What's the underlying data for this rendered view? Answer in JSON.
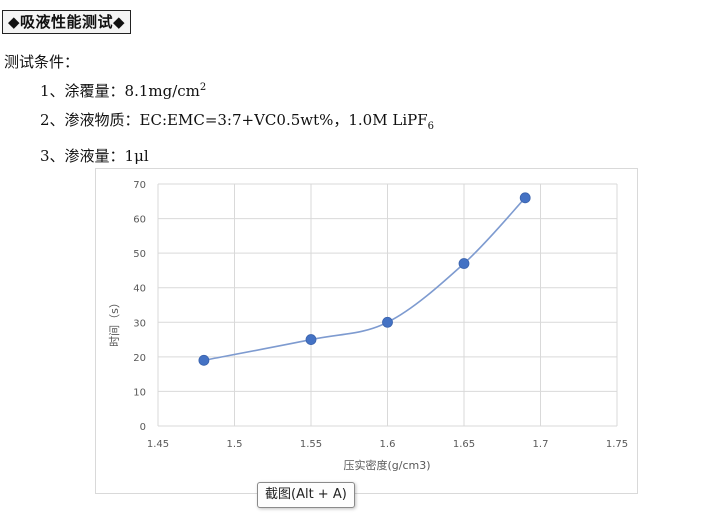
{
  "heading": "◆吸液性能测试◆",
  "conditions": {
    "title": "测试条件：",
    "item1": {
      "prefix": "1、涂覆量：",
      "value": "8.1mg/cm",
      "sup": "2"
    },
    "item2": {
      "prefix": "2、渗液物质：",
      "value": "EC:EMC=3:7+VC0.5wt%，1.0M LiPF",
      "sub": "6"
    },
    "item3": {
      "prefix": "3、渗液量：",
      "value": "1μl"
    }
  },
  "tooltip": "截图(Alt + A)",
  "colors": {
    "series": "#4472C4",
    "line": "#7E9BD0",
    "grid": "#d9d9d9",
    "axis_text": "#595959"
  },
  "chart_data": {
    "type": "line",
    "smooth": true,
    "title": "",
    "xlabel": "压实密度(g/cm3)",
    "ylabel": "时间（s）",
    "x": [
      1.48,
      1.55,
      1.6,
      1.65,
      1.69
    ],
    "series": [
      {
        "values": [
          19,
          25,
          30,
          47,
          66
        ]
      }
    ],
    "xlim": [
      1.45,
      1.75
    ],
    "ylim": [
      0,
      70
    ],
    "xticks": [
      "1.45",
      "1.5",
      "1.55",
      "1.6",
      "1.65",
      "1.7",
      "1.75"
    ],
    "yticks": [
      "0",
      "10",
      "20",
      "30",
      "40",
      "50",
      "60",
      "70"
    ],
    "grid": true,
    "legend": "none"
  }
}
